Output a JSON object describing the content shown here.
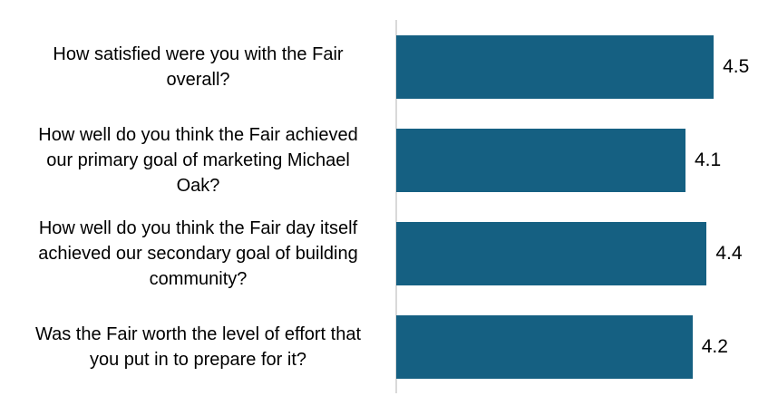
{
  "chart_data": {
    "type": "bar",
    "orientation": "horizontal",
    "title": "",
    "xlabel": "",
    "ylabel": "",
    "categories": [
      "How satisfied were you with the Fair\noverall?",
      "How well do you think the Fair achieved\nour primary goal of marketing Michael\nOak?",
      "How well do you think the Fair day itself\nachieved our secondary goal of building\ncommunity?",
      "Was the Fair worth the level of effort that\nyou put in to prepare for it?"
    ],
    "values": [
      4.5,
      4.1,
      4.4,
      4.2
    ],
    "data_labels": [
      "4.5",
      "4.1",
      "4.4",
      "4.2"
    ],
    "xlim": [
      0,
      5
    ],
    "grid": false,
    "legend": "none",
    "colors": {
      "bar": "#156082",
      "axis_line": "#D9D9D9",
      "label_text": "#000000"
    }
  }
}
